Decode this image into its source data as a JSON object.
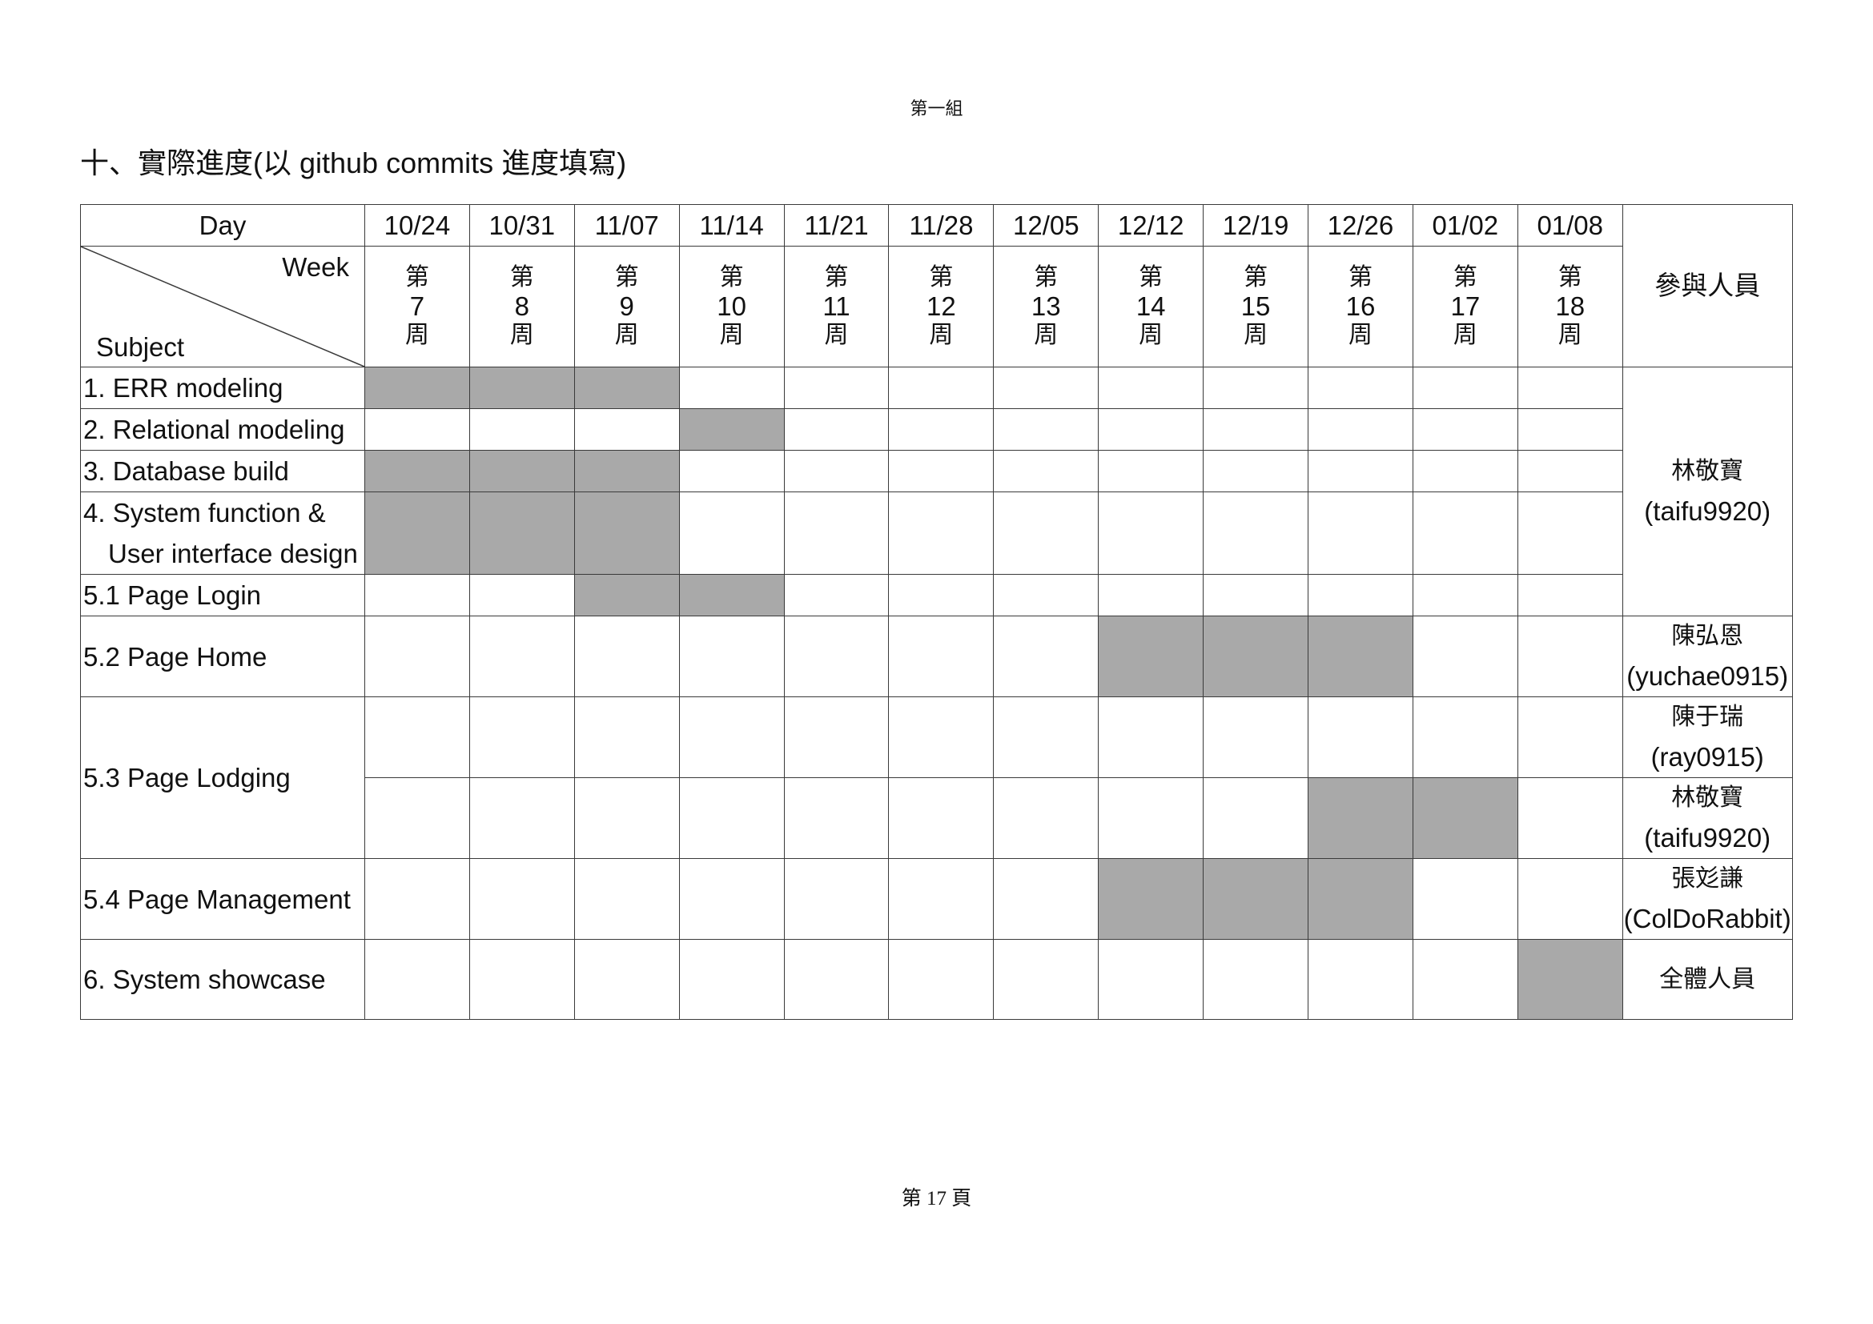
{
  "page_header": "第一組",
  "title": "十、實際進度(以 github commits 進度填寫)",
  "footer": "第 17 頁",
  "colors": {
    "filled": "#a9a9a9",
    "grid": "#3a3a3a"
  },
  "table": {
    "day_label": "Day",
    "week_label": "Week",
    "subject_label": "Subject",
    "participants_label": "參與人員",
    "week_prefix": "第",
    "week_suffix": "周",
    "columns": [
      {
        "date": "10/24",
        "week": 7
      },
      {
        "date": "10/31",
        "week": 8
      },
      {
        "date": "11/07",
        "week": 9
      },
      {
        "date": "11/14",
        "week": 10
      },
      {
        "date": "11/21",
        "week": 11
      },
      {
        "date": "11/28",
        "week": 12
      },
      {
        "date": "12/05",
        "week": 13
      },
      {
        "date": "12/12",
        "week": 14
      },
      {
        "date": "12/19",
        "week": 15
      },
      {
        "date": "12/26",
        "week": 16
      },
      {
        "date": "01/02",
        "week": 17
      },
      {
        "date": "01/08",
        "week": 18
      }
    ],
    "subjects": [
      {
        "lines": [
          "1. ERR modeling"
        ],
        "rows": 1
      },
      {
        "lines": [
          "2. Relational modeling"
        ],
        "rows": 1
      },
      {
        "lines": [
          "3. Database build"
        ],
        "rows": 1
      },
      {
        "lines": [
          "4. System function &",
          "User interface design"
        ],
        "rows": 1
      },
      {
        "lines": [
          "5.1 Page Login"
        ],
        "rows": 1
      },
      {
        "lines": [
          "5.2 Page Home"
        ],
        "rows": 1
      },
      {
        "lines": [
          "5.3 Page Lodging"
        ],
        "rows": 2
      },
      {
        "lines": [
          "5.4 Page Management"
        ],
        "rows": 1
      },
      {
        "lines": [
          "6. System showcase"
        ],
        "rows": 1
      }
    ],
    "rows": [
      {
        "filled_weeks": [
          7,
          8,
          9
        ]
      },
      {
        "filled_weeks": [
          10
        ]
      },
      {
        "filled_weeks": [
          7,
          8,
          9
        ]
      },
      {
        "filled_weeks": [
          7,
          8,
          9
        ]
      },
      {
        "filled_weeks": [
          9,
          10
        ]
      },
      {
        "filled_weeks": [
          14,
          15,
          16
        ]
      },
      {
        "filled_weeks": []
      },
      {
        "filled_weeks": [
          16,
          17
        ]
      },
      {
        "filled_weeks": [
          14,
          15,
          16
        ]
      },
      {
        "filled_weeks": [
          18
        ]
      }
    ],
    "participants": [
      {
        "name": "林敬寶",
        "id": "(taifu9920)",
        "rows": 5
      },
      {
        "name": "陳弘恩",
        "id": "(yuchae0915)",
        "rows": 1
      },
      {
        "name": "陳于瑞",
        "id": "(ray0915)",
        "rows": 1
      },
      {
        "name": "林敬寶",
        "id": "(taifu9920)",
        "rows": 1
      },
      {
        "name": "張彣謙",
        "id": "(ColDoRabbit)",
        "rows": 1
      },
      {
        "name": "全體人員",
        "id": "",
        "rows": 1
      }
    ]
  }
}
